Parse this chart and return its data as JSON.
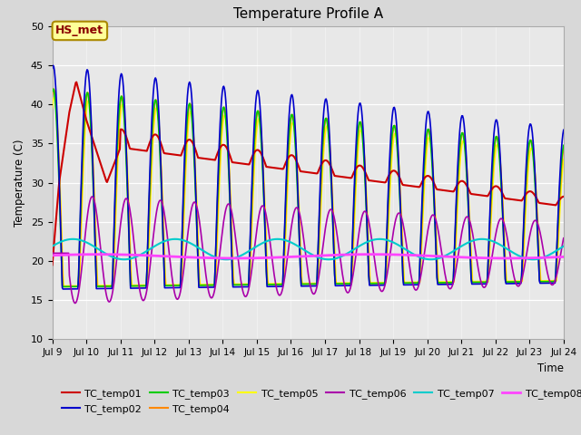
{
  "title": "Temperature Profile A",
  "xlabel": "Time",
  "ylabel": "Temperature (C)",
  "ylim": [
    10,
    50
  ],
  "bg_color": "#d8d8d8",
  "plot_bg_color": "#e8e8e8",
  "annotation_text": "HS_met",
  "annotation_color": "#8b0000",
  "annotation_bg": "#ffff99",
  "annotation_edge": "#aa8800",
  "legend_entries": [
    "TC_temp01",
    "TC_temp02",
    "TC_temp03",
    "TC_temp04",
    "TC_temp05",
    "TC_temp06",
    "TC_temp07",
    "TC_temp08"
  ],
  "line_colors": {
    "TC_temp01": "#cc0000",
    "TC_temp02": "#0000cc",
    "TC_temp03": "#00cc00",
    "TC_temp04": "#ff8800",
    "TC_temp05": "#ffff00",
    "TC_temp06": "#aa00aa",
    "TC_temp07": "#00cccc",
    "TC_temp08": "#ff44ff"
  },
  "xtick_labels": [
    "Jul 9",
    "Jul 10",
    "Jul 11",
    "Jul 12",
    "Jul 13",
    "Jul 14",
    "Jul 15",
    "Jul 16",
    "Jul 17",
    "Jul 18",
    "Jul 19",
    "Jul 20",
    "Jul 21",
    "Jul 22",
    "Jul 23",
    "Jul 24"
  ]
}
